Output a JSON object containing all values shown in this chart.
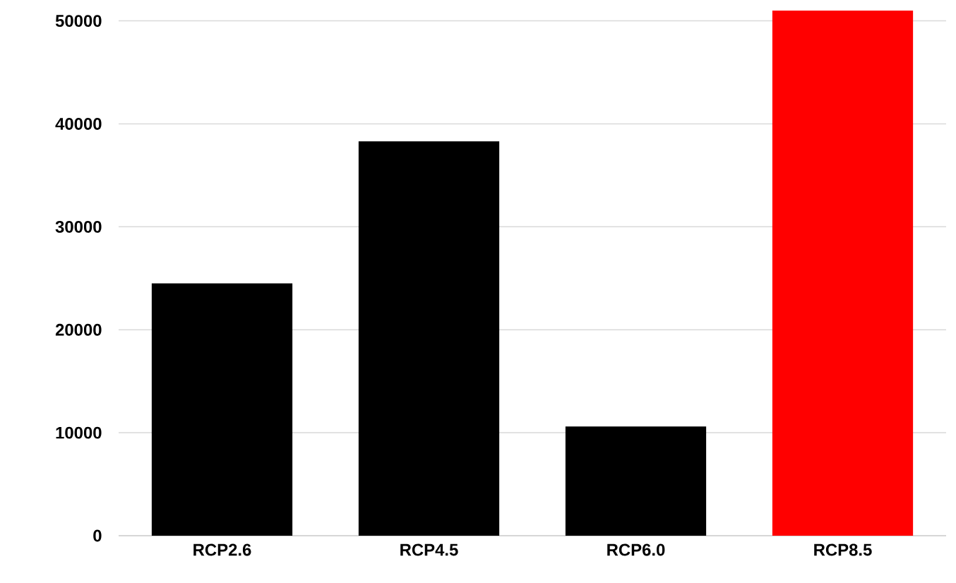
{
  "chart_data": {
    "type": "bar",
    "categories": [
      "RCP2.6",
      "RCP4.5",
      "RCP6.0",
      "RCP8.5"
    ],
    "values": [
      24500,
      38300,
      10600,
      51000
    ],
    "colors": [
      "#000000",
      "#000000",
      "#000000",
      "#ff0000"
    ],
    "ylim": [
      0,
      51000
    ],
    "yticks": [
      0,
      10000,
      20000,
      30000,
      40000,
      50000
    ],
    "grid": "y"
  }
}
